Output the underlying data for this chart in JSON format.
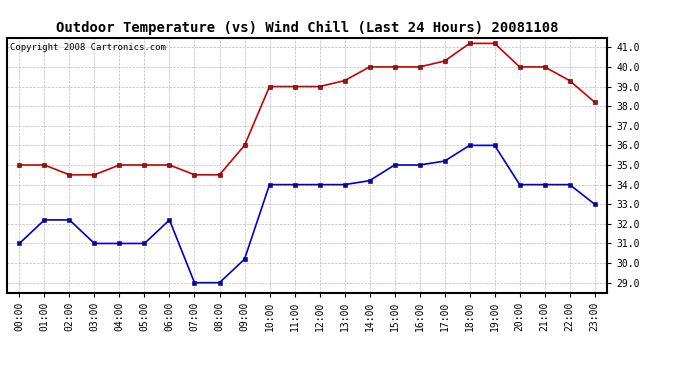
{
  "title": "Outdoor Temperature (vs) Wind Chill (Last 24 Hours) 20081108",
  "copyright_text": "Copyright 2008 Cartronics.com",
  "hours": [
    "00:00",
    "01:00",
    "02:00",
    "03:00",
    "04:00",
    "05:00",
    "06:00",
    "07:00",
    "08:00",
    "09:00",
    "10:00",
    "11:00",
    "12:00",
    "13:00",
    "14:00",
    "15:00",
    "16:00",
    "17:00",
    "18:00",
    "19:00",
    "20:00",
    "21:00",
    "22:00",
    "23:00"
  ],
  "outdoor_temp": [
    35.0,
    35.0,
    34.5,
    34.5,
    35.0,
    35.0,
    35.0,
    34.5,
    34.5,
    36.0,
    39.0,
    39.0,
    39.0,
    39.3,
    40.0,
    40.0,
    40.0,
    40.3,
    41.2,
    41.2,
    40.0,
    40.0,
    39.3,
    38.2
  ],
  "wind_chill": [
    31.0,
    32.2,
    32.2,
    31.0,
    31.0,
    31.0,
    32.2,
    29.0,
    29.0,
    30.2,
    34.0,
    34.0,
    34.0,
    34.0,
    34.2,
    35.0,
    35.0,
    35.2,
    36.0,
    36.0,
    34.0,
    34.0,
    34.0,
    33.0
  ],
  "temp_color": "#cc0000",
  "wind_chill_color": "#0000cc",
  "bg_color": "#ffffff",
  "grid_color": "#bbbbbb",
  "ylim": [
    28.5,
    41.5
  ],
  "yticks": [
    29.0,
    30.0,
    31.0,
    32.0,
    33.0,
    34.0,
    35.0,
    36.0,
    37.0,
    38.0,
    39.0,
    40.0,
    41.0
  ],
  "title_fontsize": 10,
  "tick_fontsize": 7,
  "copyright_fontsize": 6.5,
  "linewidth": 1.2,
  "markersize": 3
}
